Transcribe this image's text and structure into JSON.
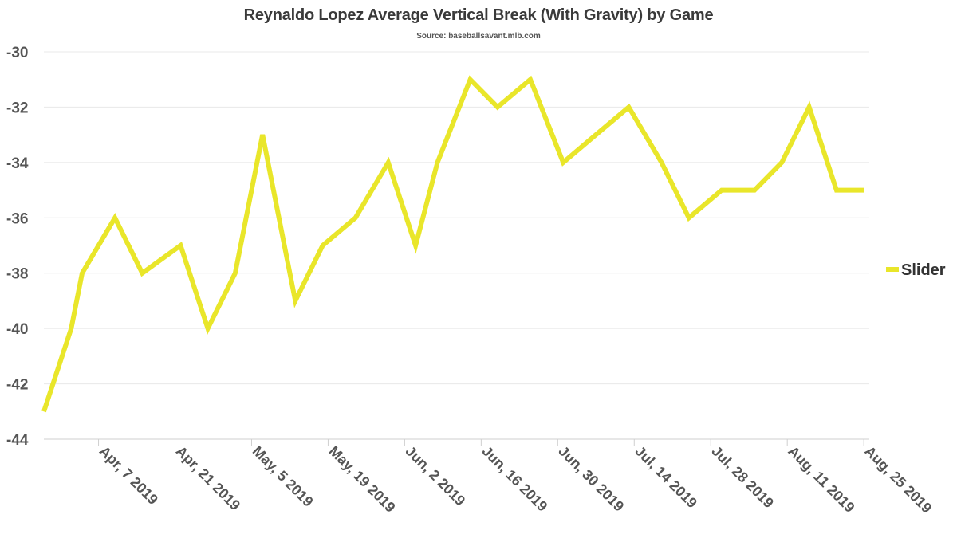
{
  "chart_data": {
    "type": "line",
    "title": "Reynaldo Lopez Average Vertical Break (With Gravity) by Game",
    "subtitle": "Source: baseballsavant.mlb.com",
    "xlabel": "",
    "ylabel": "",
    "ylim": [
      -44,
      -30
    ],
    "y_ticks": [
      -30,
      -32,
      -34,
      -36,
      -38,
      -40,
      -42,
      -44
    ],
    "x_range": [
      "2019-03-28",
      "2019-08-26"
    ],
    "x_ticks": [
      "2019-04-07",
      "2019-04-21",
      "2019-05-05",
      "2019-05-19",
      "2019-06-02",
      "2019-06-16",
      "2019-06-30",
      "2019-07-14",
      "2019-07-28",
      "2019-08-11",
      "2019-08-25"
    ],
    "x_tick_labels": [
      "Apr, 7 2019",
      "Apr, 21 2019",
      "May, 5 2019",
      "May, 19 2019",
      "Jun, 2 2019",
      "Jun, 16 2019",
      "Jun, 30 2019",
      "Jul, 14 2019",
      "Jul, 28 2019",
      "Aug, 11 2019",
      "Aug, 25 2019"
    ],
    "grid": true,
    "legend": "right",
    "series": [
      {
        "name": "Slider",
        "color": "#e9e62a",
        "x": [
          "2019-03-28",
          "2019-04-02",
          "2019-04-04",
          "2019-04-10",
          "2019-04-15",
          "2019-04-22",
          "2019-04-27",
          "2019-05-02",
          "2019-05-07",
          "2019-05-13",
          "2019-05-18",
          "2019-05-24",
          "2019-05-30",
          "2019-06-04",
          "2019-06-08",
          "2019-06-14",
          "2019-06-19",
          "2019-06-25",
          "2019-07-01",
          "2019-07-07",
          "2019-07-13",
          "2019-07-19",
          "2019-07-24",
          "2019-07-30",
          "2019-08-05",
          "2019-08-10",
          "2019-08-15",
          "2019-08-20",
          "2019-08-25"
        ],
        "values": [
          -43,
          -40,
          -38,
          -36,
          -38,
          -37,
          -40,
          -38,
          -33,
          -39,
          -37,
          -36,
          -34,
          -37,
          -34,
          -31,
          -32,
          -31,
          -34,
          -33,
          -32,
          -34,
          -36,
          -35,
          -35,
          -34,
          -32,
          -35,
          -35
        ]
      }
    ]
  }
}
